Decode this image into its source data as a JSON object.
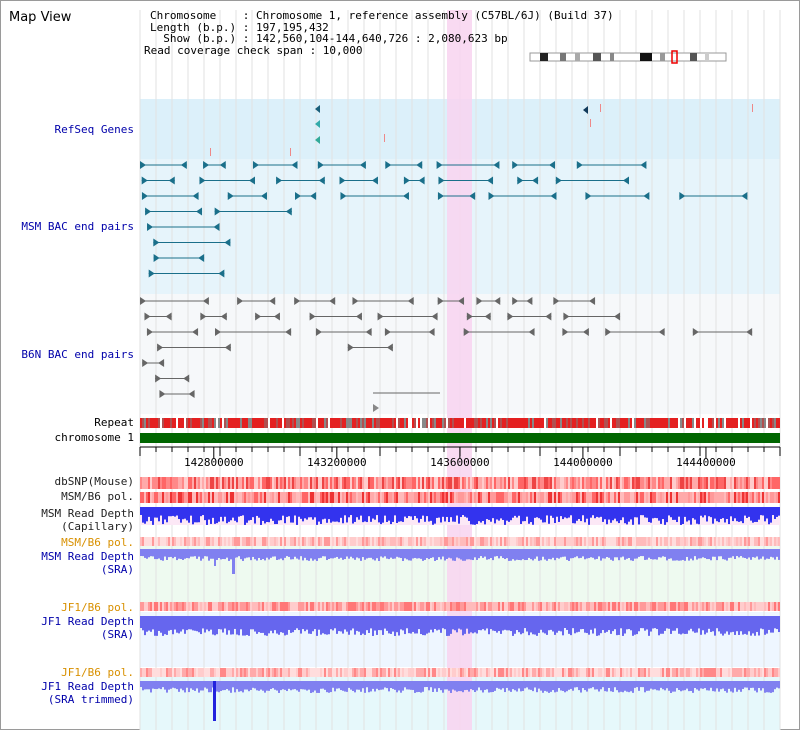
{
  "view_title": "Map View",
  "header": {
    "chromosome_line": "Chromosome    : Chromosome 1, reference assembly (C57BL/6J) (Build 37)",
    "length_line": "Length (b.p.) : 197,195,432",
    "show_line": "  Show (b.p.) : 142,560,104-144,640,726 : 2,080,623 bp",
    "coverage_line": "Read coverage check span : 10,000"
  },
  "tracks": {
    "refseq": "RefSeq Genes",
    "msm_bac": "MSM BAC end pairs",
    "b6n_bac": "B6N BAC end pairs",
    "repeat": "Repeat",
    "chromosome": "chromosome 1",
    "dbsnp": "dbSNP(Mouse)",
    "msm_b6_pol_1": "MSM/B6 pol.",
    "msm_depth_cap_1": "MSM Read Depth",
    "msm_depth_cap_2": "(Capillary)",
    "msm_b6_pol_2": "MSM/B6 pol.",
    "msm_depth_sra_1": "MSM Read Depth",
    "msm_depth_sra_2": "(SRA)",
    "jf1_b6_pol_1": "JF1/B6 pol.",
    "jf1_depth_sra_1": "JF1 Read Depth",
    "jf1_depth_sra_2": "(SRA)",
    "jf1_b6_pol_2": "JF1/B6 pol.",
    "jf1_depth_trim_1": "JF1 Read Depth",
    "jf1_depth_trim_2": "(SRA trimmed)"
  },
  "axis": {
    "ticks": [
      "142800000",
      "143200000",
      "143600000",
      "144000000",
      "144400000"
    ],
    "range_start": 142560104,
    "range_end": 144640726
  },
  "colors": {
    "msm_track_bg": "#e6f4fb",
    "refseq_bg": "#dcf0fa",
    "highlight": "#f8d4f0",
    "chromosome_bar": "#006600",
    "depth_blue": "#3333ee",
    "depth_light": "#8080f0",
    "msm_feature": "#1a6f8a",
    "b6n_feature": "#666666"
  },
  "icons": [
    "chromosome-ideogram"
  ]
}
